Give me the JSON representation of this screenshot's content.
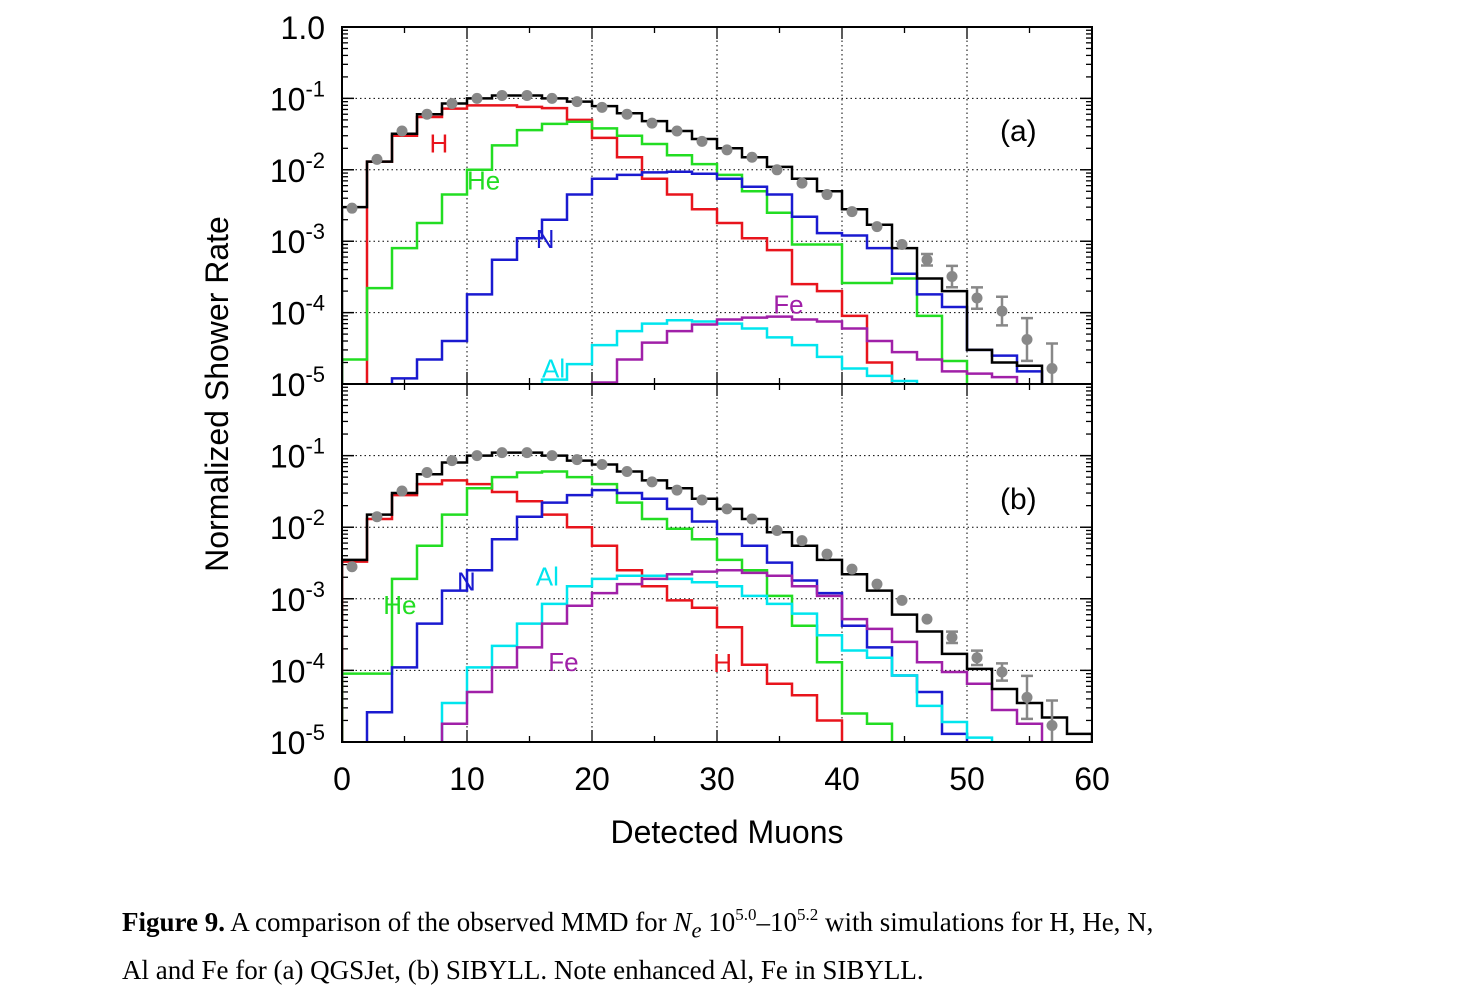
{
  "chart_data": [
    {
      "type": "line",
      "panel_label": "(a)",
      "xlabel": "Detected Muons",
      "ylabel": "Normalized Shower Rate",
      "xlim": [
        0,
        60
      ],
      "ylim": [
        1e-05,
        1.0
      ],
      "y_scale": "log",
      "grid": true,
      "x_ticks": [
        "0",
        "10",
        "20",
        "30",
        "40",
        "50",
        "60"
      ],
      "y_ticks": [
        {
          "value": 1.0,
          "base": "1.0",
          "exp": ""
        },
        {
          "value": 0.1,
          "base": "10",
          "exp": "-1"
        },
        {
          "value": 0.01,
          "base": "10",
          "exp": "-2"
        },
        {
          "value": 0.001,
          "base": "10",
          "exp": "-3"
        },
        {
          "value": 0.0001,
          "base": "10",
          "exp": "-4"
        },
        {
          "value": 1e-05,
          "base": "10",
          "exp": "-5"
        }
      ],
      "series": [
        {
          "name": "H",
          "color": "#e8141c",
          "label_at": [
            7,
            0.024
          ],
          "x": [
            0,
            2,
            4,
            6,
            8,
            10,
            12,
            14,
            16,
            18,
            20,
            22,
            24,
            26,
            28,
            30,
            32,
            34,
            36,
            38,
            40,
            42,
            44
          ],
          "values": [
            null,
            0.013,
            0.03,
            0.055,
            0.072,
            0.08,
            0.08,
            0.076,
            0.073,
            0.05,
            0.028,
            0.015,
            0.0075,
            0.0045,
            0.0028,
            0.0018,
            0.0011,
            0.00075,
            0.00025,
            0.0002,
            9e-05,
            2e-05,
            9e-06
          ]
        },
        {
          "name": "He",
          "color": "#22dd22",
          "label_at": [
            10,
            0.0073
          ],
          "x": [
            0,
            2,
            4,
            6,
            8,
            10,
            12,
            14,
            16,
            18,
            20,
            22,
            24,
            26,
            28,
            30,
            32,
            34,
            36,
            38,
            40,
            42,
            44,
            46,
            48
          ],
          "values": [
            2.2e-05,
            0.00022,
            0.0008,
            0.0018,
            0.0045,
            0.01,
            0.022,
            0.036,
            0.044,
            0.047,
            0.038,
            0.03,
            0.023,
            0.016,
            0.012,
            0.0085,
            0.005,
            0.0025,
            0.0009,
            0.0009,
            0.00026,
            0.00026,
            0.0003,
            9e-05,
            2.1e-05
          ]
        },
        {
          "name": "N",
          "color": "#1a1ad0",
          "label_at": [
            15.5,
            0.0011
          ],
          "x": [
            0,
            2,
            4,
            6,
            8,
            10,
            12,
            14,
            16,
            18,
            20,
            22,
            24,
            26,
            28,
            30,
            32,
            34,
            36,
            38,
            40,
            42,
            44,
            46,
            48,
            50,
            52,
            54
          ],
          "values": [
            null,
            null,
            1.2e-05,
            2.2e-05,
            4e-05,
            0.00018,
            0.00055,
            0.0011,
            0.002,
            0.0045,
            0.0075,
            0.0085,
            0.0092,
            0.0094,
            0.0088,
            0.0075,
            0.0058,
            0.0045,
            0.0022,
            0.0013,
            0.0012,
            0.0008,
            0.00035,
            0.00018,
            0.00012,
            3e-05,
            2.5e-05,
            1.5e-05
          ]
        },
        {
          "name": "Al",
          "color": "#00e5ee",
          "label_at": [
            16,
            1.7e-05
          ],
          "x": [
            16,
            18,
            20,
            22,
            24,
            26,
            28,
            30,
            32,
            34,
            36,
            38,
            40,
            42,
            44,
            46
          ],
          "values": [
            1.15e-05,
            1.9e-05,
            3.5e-05,
            5.5e-05,
            7e-05,
            7.8e-05,
            7.5e-05,
            7e-05,
            6e-05,
            4.5e-05,
            3.5e-05,
            2.4e-05,
            1.65e-05,
            1.3e-05,
            1.1e-05,
            7.5e-06
          ]
        },
        {
          "name": "Fe",
          "color": "#a020a8",
          "label_at": [
            34.5,
            0.000135
          ],
          "x": [
            20,
            22,
            24,
            26,
            28,
            30,
            32,
            34,
            36,
            38,
            40,
            42,
            44,
            46,
            48,
            50,
            52,
            54
          ],
          "values": [
            1.05e-05,
            2.2e-05,
            3.8e-05,
            5.5e-05,
            6.8e-05,
            8e-05,
            8.5e-05,
            8.8e-05,
            8e-05,
            7.5e-05,
            6e-05,
            4e-05,
            2.8e-05,
            2.2e-05,
            1.5e-05,
            1.4e-05,
            1.25e-05,
            8.5e-06
          ]
        },
        {
          "name": "",
          "color": "#000000",
          "x": [
            0,
            2,
            4,
            6,
            8,
            10,
            12,
            14,
            16,
            18,
            20,
            22,
            24,
            26,
            28,
            30,
            32,
            34,
            36,
            38,
            40,
            42,
            44,
            46,
            48,
            50,
            52,
            54,
            56
          ],
          "values": [
            0.003,
            0.013,
            0.032,
            0.06,
            0.085,
            0.1,
            0.11,
            0.11,
            0.1,
            0.09,
            0.078,
            0.062,
            0.048,
            0.035,
            0.027,
            0.02,
            0.015,
            0.011,
            0.0075,
            0.005,
            0.0028,
            0.0017,
            0.0008,
            0.0003,
            0.0002,
            3e-05,
            2e-05,
            1.8e-05,
            5e-06
          ]
        },
        {
          "name": "",
          "type": "scatter",
          "color": "#888888",
          "x": [
            0.8,
            2.8,
            4.8,
            6.8,
            8.8,
            10.8,
            12.8,
            14.8,
            16.8,
            18.8,
            20.8,
            22.8,
            24.8,
            26.8,
            28.8,
            30.8,
            32.8,
            34.8,
            36.8,
            38.8,
            40.8,
            42.8,
            44.8,
            46.8,
            48.8,
            50.8,
            52.8,
            54.8,
            56.8
          ],
          "values": [
            0.0029,
            0.014,
            0.035,
            0.06,
            0.085,
            0.1,
            0.11,
            0.11,
            0.1,
            0.09,
            0.075,
            0.06,
            0.045,
            0.035,
            0.025,
            0.019,
            0.015,
            0.01,
            0.0065,
            0.0045,
            0.0026,
            0.0016,
            0.0009,
            0.00055,
            0.00032,
            0.00016,
            0.000105,
            4.2e-05,
            1.65e-05
          ],
          "err": [
            0,
            0,
            0,
            0,
            0,
            0,
            0,
            0,
            0,
            0,
            0,
            0,
            0,
            0,
            0,
            0,
            0,
            0,
            0,
            0,
            0,
            0,
            0,
            0.08,
            0.15,
            0.15,
            0.2,
            0.3,
            0.35
          ]
        }
      ]
    },
    {
      "type": "line",
      "panel_label": "(b)",
      "xlabel": "Detected Muons",
      "ylabel": "Normalized Shower Rate",
      "xlim": [
        0,
        60
      ],
      "ylim": [
        1e-05,
        1.0
      ],
      "y_scale": "log",
      "grid": true,
      "x_ticks": [
        "0",
        "10",
        "20",
        "30",
        "40",
        "50",
        "60"
      ],
      "y_ticks": [
        {
          "value": 0.1,
          "base": "10",
          "exp": "-1"
        },
        {
          "value": 0.01,
          "base": "10",
          "exp": "-2"
        },
        {
          "value": 0.001,
          "base": "10",
          "exp": "-3"
        },
        {
          "value": 0.0001,
          "base": "10",
          "exp": "-4"
        },
        {
          "value": 1e-05,
          "base": "10",
          "exp": "-5"
        }
      ],
      "series": [
        {
          "name": "H",
          "color": "#e8141c",
          "label_at": [
            29.7,
            0.00013
          ],
          "x": [
            0,
            2,
            4,
            6,
            8,
            10,
            12,
            14,
            16,
            18,
            20,
            22,
            24,
            26,
            28,
            30,
            32,
            34,
            36,
            38
          ],
          "values": [
            0.0033,
            0.013,
            0.028,
            0.04,
            0.045,
            0.04,
            0.031,
            0.023,
            0.015,
            0.01,
            0.0055,
            0.0025,
            0.0015,
            0.00095,
            0.00075,
            0.0004,
            0.00012,
            6.5e-05,
            4.5e-05,
            2e-05
          ]
        },
        {
          "name": "He",
          "color": "#22dd22",
          "label_at": [
            3.3,
            0.00085
          ],
          "x": [
            0,
            2,
            4,
            6,
            8,
            10,
            12,
            14,
            16,
            18,
            20,
            22,
            24,
            26,
            28,
            30,
            32,
            34,
            36,
            38,
            40,
            42
          ],
          "values": [
            9e-05,
            9e-05,
            0.0019,
            0.0055,
            0.015,
            0.035,
            0.05,
            0.058,
            0.06,
            0.05,
            0.04,
            0.022,
            0.013,
            0.0095,
            0.0068,
            0.0035,
            0.0025,
            0.0011,
            0.00042,
            0.00013,
            2.5e-05,
            1.8e-05
          ]
        },
        {
          "name": "N",
          "color": "#1a1ad0",
          "label_at": [
            9.2,
            0.0018
          ],
          "x": [
            0,
            2,
            4,
            6,
            8,
            10,
            12,
            14,
            16,
            18,
            20,
            22,
            24,
            26,
            28,
            30,
            32,
            34,
            36,
            38,
            40,
            42,
            44,
            46,
            48
          ],
          "values": [
            null,
            2.6e-05,
            0.00011,
            0.00045,
            0.0013,
            0.0025,
            0.0068,
            0.014,
            0.022,
            0.028,
            0.033,
            0.03,
            0.025,
            0.018,
            0.012,
            0.008,
            0.0055,
            0.0032,
            0.0018,
            0.0012,
            0.00042,
            0.00021,
            8.5e-05,
            5e-05,
            1.3e-05
          ]
        },
        {
          "name": "Al",
          "color": "#00e5ee",
          "label_at": [
            15.5,
            0.0021
          ],
          "x": [
            6,
            8,
            10,
            12,
            14,
            16,
            18,
            20,
            22,
            24,
            26,
            28,
            30,
            32,
            34,
            36,
            38,
            40,
            42,
            44,
            46,
            48,
            50
          ],
          "values": [
            null,
            3.5e-05,
            0.00011,
            0.00022,
            0.00045,
            0.00085,
            0.0015,
            0.0019,
            0.0021,
            0.0021,
            0.0019,
            0.0017,
            0.0015,
            0.0011,
            0.00085,
            0.00062,
            0.00031,
            0.00019,
            0.00015,
            8.5e-05,
            3.2e-05,
            1.9e-05,
            1.15e-05
          ]
        },
        {
          "name": "Fe",
          "color": "#a020a8",
          "label_at": [
            16.5,
            0.000135
          ],
          "x": [
            8,
            10,
            12,
            14,
            16,
            18,
            20,
            22,
            24,
            26,
            28,
            30,
            32,
            34,
            36,
            38,
            40,
            42,
            44,
            46,
            48,
            50,
            52,
            54
          ],
          "values": [
            1.8e-05,
            5e-05,
            0.00011,
            0.00021,
            0.00045,
            0.0008,
            0.0012,
            0.0016,
            0.0019,
            0.0022,
            0.0024,
            0.0025,
            0.0023,
            0.0021,
            0.0015,
            0.0011,
            0.00052,
            0.00038,
            0.00025,
            0.00013,
            9.5e-05,
            6.5e-05,
            2.8e-05,
            1.8e-05
          ]
        },
        {
          "name": "",
          "color": "#000000",
          "x": [
            0,
            2,
            4,
            6,
            8,
            10,
            12,
            14,
            16,
            18,
            20,
            22,
            24,
            26,
            28,
            30,
            32,
            34,
            36,
            38,
            40,
            42,
            44,
            46,
            48,
            50,
            52,
            54,
            56,
            58
          ],
          "values": [
            0.0035,
            0.015,
            0.03,
            0.055,
            0.08,
            0.1,
            0.11,
            0.11,
            0.1,
            0.085,
            0.075,
            0.06,
            0.045,
            0.035,
            0.025,
            0.018,
            0.013,
            0.0085,
            0.0055,
            0.0035,
            0.0022,
            0.0013,
            0.0006,
            0.00035,
            0.00017,
            0.000105,
            5.5e-05,
            3.5e-05,
            2.2e-05,
            1.3e-05
          ]
        },
        {
          "name": "",
          "type": "scatter",
          "color": "#888888",
          "x": [
            0.8,
            2.8,
            4.8,
            6.8,
            8.8,
            10.8,
            12.8,
            14.8,
            16.8,
            18.8,
            20.8,
            22.8,
            24.8,
            26.8,
            28.8,
            30.8,
            32.8,
            34.8,
            36.8,
            38.8,
            40.8,
            42.8,
            44.8,
            46.8,
            48.8,
            50.8,
            52.8,
            54.8,
            56.8
          ],
          "values": [
            0.0028,
            0.014,
            0.032,
            0.058,
            0.085,
            0.1,
            0.11,
            0.11,
            0.1,
            0.088,
            0.075,
            0.06,
            0.043,
            0.033,
            0.024,
            0.018,
            0.013,
            0.009,
            0.0065,
            0.0042,
            0.0026,
            0.0016,
            0.00095,
            0.00052,
            0.00029,
            0.00015,
            9.5e-05,
            4.2e-05,
            1.7e-05
          ],
          "err": [
            0,
            0,
            0,
            0,
            0,
            0,
            0,
            0,
            0,
            0,
            0,
            0,
            0,
            0,
            0,
            0,
            0,
            0,
            0,
            0,
            0,
            0,
            0,
            0,
            0.08,
            0.1,
            0.12,
            0.3,
            0.35
          ]
        }
      ]
    }
  ],
  "caption": {
    "label": "Figure 9.",
    "t1": " A comparison of the observed MMD for ",
    "var": "N",
    "sub": "e",
    "t2": " 10",
    "exp1": "5.0",
    "t3": "–10",
    "exp2": "5.2",
    "t4": "  with simulations for H, He, N,",
    "line2": "Al and Fe for (a) QGSJet, (b) SIBYLL. Note enhanced Al, Fe in SIBYLL."
  }
}
